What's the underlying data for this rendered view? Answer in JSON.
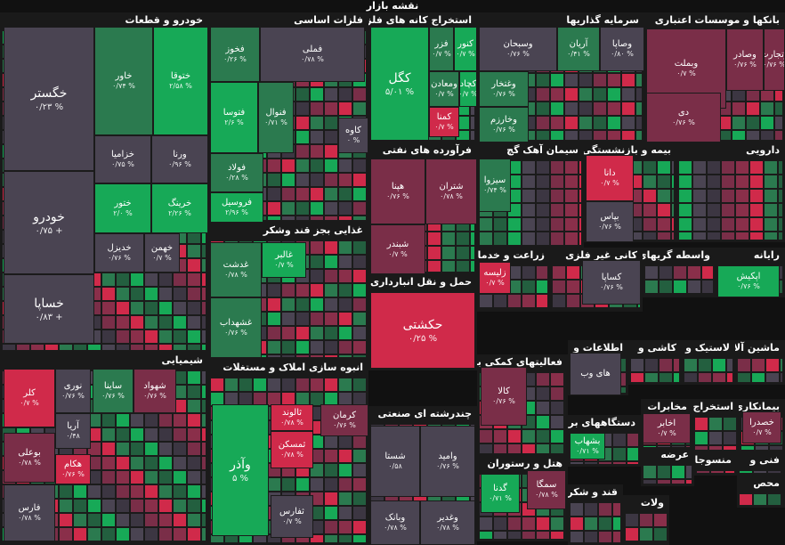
{
  "title": "نقشه بازار",
  "sectors": [
    {
      "id": "khodro",
      "label": "خودرو و قطعات",
      "cells": [
        {
          "n": "خگستر",
          "p": "۰/۲۳ %",
          "c": "#4a4452",
          "big": true
        },
        {
          "n": "خودرو",
          "p": "۰/۷۵ +",
          "c": "#4a4452",
          "big": true
        },
        {
          "n": "خساپا",
          "p": "۰/۸۳ +",
          "c": "#4a4452",
          "big": true
        },
        {
          "n": "خاور",
          "p": "۰/۷۴ %",
          "c": "#2b7a4f"
        },
        {
          "n": "ختوقا",
          "p": "۲/۵۸ %",
          "c": "#17a957"
        },
        {
          "n": "خزامیا",
          "p": "۰/۷۵ %",
          "c": "#4a4452"
        },
        {
          "n": "ورنا",
          "p": "۰/۹۶ %",
          "c": "#4a4452"
        },
        {
          "n": "ختور",
          "p": "۲/۰ %",
          "c": "#17a957"
        },
        {
          "n": "خرینگ",
          "p": "۲/۲۶ %",
          "c": "#17a957"
        },
        {
          "n": "خدیزل",
          "p": "۰/۷۶ %",
          "c": "#4a4452"
        },
        {
          "n": "خهمن",
          "p": "۰/۷ %",
          "c": "#4a4452"
        }
      ]
    },
    {
      "id": "felezat",
      "label": "فلزات اساسی",
      "cells": [
        {
          "n": "فخوز",
          "p": "۰/۲۶ %",
          "c": "#2b7a4f"
        },
        {
          "n": "فملی",
          "p": "۰/۷۸ %",
          "c": "#4a4452"
        },
        {
          "n": "فتوسا",
          "p": "۲/۶ %",
          "c": "#17a957"
        },
        {
          "n": "فنوال",
          "p": "۰/۷۱ %",
          "c": "#2b7a4f"
        },
        {
          "n": "فولاد",
          "p": "۰/۲۸ %",
          "c": "#2b7a4f"
        },
        {
          "n": "فروسیل",
          "p": "۲/۹۶ %",
          "c": "#17a957"
        },
        {
          "n": "کاوه",
          "p": "۰ %",
          "c": "#4a4452"
        }
      ]
    },
    {
      "id": "kani",
      "label": "استخراج کانه های فلزی",
      "cells": [
        {
          "n": "کگل",
          "p": "۵/۰۱ %",
          "c": "#17a957",
          "big": true
        },
        {
          "n": "فزر",
          "p": "۰/۷ %",
          "c": "#2b7a4f"
        },
        {
          "n": "کنور",
          "p": "۰/۷ %",
          "c": "#17a957"
        },
        {
          "n": "ومعادن",
          "p": "۰/۷ %",
          "c": "#2b7a4f"
        },
        {
          "n": "کچاد",
          "p": "۰/۷ %",
          "c": "#17a957"
        },
        {
          "n": "کمنا",
          "p": "۰/۷ %",
          "c": "#d02a4a"
        }
      ]
    },
    {
      "id": "sarmaye",
      "label": "سرمایه گذاریها",
      "cells": [
        {
          "n": "وسبحان",
          "p": "۰/۷۶ %",
          "c": "#4a4452"
        },
        {
          "n": "آریان",
          "p": "۰/۴۱ %",
          "c": "#2b7a4f"
        },
        {
          "n": "وصاپا",
          "p": "۰/۸۰ %",
          "c": "#4a4452"
        },
        {
          "n": "وغتخار",
          "p": "۰/۷۶ %",
          "c": "#2b7a4f"
        },
        {
          "n": "وخارزم",
          "p": "۰/۷۶ %",
          "c": "#2b7a4f"
        }
      ]
    },
    {
      "id": "bank",
      "label": "بانکها و موسسات اعتباری",
      "cells": [
        {
          "n": "وبملت",
          "p": "۰/۷ %",
          "c": "#7a2e48"
        },
        {
          "n": "وصادر",
          "p": "۰/۷۶ %",
          "c": "#7a2e48"
        },
        {
          "n": "وتجارت",
          "p": "۰/۷۶ %",
          "c": "#7a2e48"
        },
        {
          "n": "دی",
          "p": "۰/۷۶ %",
          "c": "#7a2e48"
        }
      ]
    },
    {
      "id": "nafti",
      "label": "فرآورده های نفتی",
      "cells": [
        {
          "n": "هپنا",
          "p": "۰/۷۶ %",
          "c": "#7a2e48"
        },
        {
          "n": "شتران",
          "p": "۰/۷۸ %",
          "c": "#7a2e48"
        },
        {
          "n": "شبندر",
          "p": "۰/۷ %",
          "c": "#7a2e48"
        }
      ]
    },
    {
      "id": "siman",
      "label": "سیمان آهک گچ",
      "cells": [
        {
          "n": "سیزوا",
          "p": "۰/۷۴ %",
          "c": "#2b7a4f"
        }
      ]
    },
    {
      "id": "bime",
      "label": "بیمه و بازنشستگی",
      "cells": [
        {
          "n": "دانا",
          "p": "۰/۷ %",
          "c": "#d02a4a"
        },
        {
          "n": "بپاس",
          "p": "۰/۷۶ %",
          "c": "#4a4452"
        }
      ]
    },
    {
      "id": "daroo",
      "label": "دارویی",
      "cells": []
    },
    {
      "id": "ghaza",
      "label": "غذایی بجز قند وشکر",
      "cells": [
        {
          "n": "غدشت",
          "p": "۰/۷۸ %",
          "c": "#2b7a4f"
        },
        {
          "n": "غالبر",
          "p": "۰/۷ %",
          "c": "#17a957"
        },
        {
          "n": "غشهداب",
          "p": "۰/۷۶ %",
          "c": "#2b7a4f"
        }
      ]
    },
    {
      "id": "haml",
      "label": "حمل و نقل انبارداری و",
      "cells": [
        {
          "n": "حکشتی",
          "p": "۰/۲۵ %",
          "c": "#d02a4a",
          "big": true
        }
      ]
    },
    {
      "id": "zeraat",
      "label": "زراعت و خدمات",
      "cells": [
        {
          "n": "زلیسه",
          "p": "۰/۷ %",
          "c": "#d02a4a"
        }
      ]
    },
    {
      "id": "kanighair",
      "label": "کانی غیر فلزی",
      "cells": [
        {
          "n": "کساپا",
          "p": "۰/۷۶ %",
          "c": "#4a4452"
        }
      ]
    },
    {
      "id": "vasete",
      "label": "واسطه گریهای",
      "cells": []
    },
    {
      "id": "rayane",
      "label": "رایانه",
      "cells": [
        {
          "n": "اپکیش",
          "p": "۰/۷۶ %",
          "c": "#17a957"
        }
      ]
    },
    {
      "id": "shimi",
      "label": "شیمیایی",
      "cells": [
        {
          "n": "کلر",
          "p": "۰/۷ %",
          "c": "#d02a4a"
        },
        {
          "n": "نوری",
          "p": "۰/۷۶ %",
          "c": "#4a4452"
        },
        {
          "n": "ساینا",
          "p": "۰/۷۶ %",
          "c": "#2b7a4f"
        },
        {
          "n": "شهواد",
          "p": "۰/۷۶ %",
          "c": "#7a2e48"
        },
        {
          "n": "آریا",
          "p": "۰/۴۸",
          "c": "#4a4452"
        },
        {
          "n": "بوعلی",
          "p": "۰/۷۸ %",
          "c": "#7a2e48"
        },
        {
          "n": "هکام",
          "p": "۰/۷۶ %",
          "c": "#d02a4a"
        },
        {
          "n": "فارس",
          "p": "۰/۷۸ %",
          "c": "#4a4452"
        }
      ]
    },
    {
      "id": "ghand",
      "label": "قند و شکر",
      "cells": []
    },
    {
      "id": "amlak",
      "label": "انبوه سازی املاک و مستغلات",
      "cells": [
        {
          "n": "وآذر",
          "p": "۵ %",
          "c": "#17a957",
          "big": true
        },
        {
          "n": "ثالوند",
          "p": "۰/۷۸ %",
          "c": "#d02a4a"
        },
        {
          "n": "ثمسکن",
          "p": "۰/۷۸ %",
          "c": "#d02a4a"
        },
        {
          "n": "کرمان",
          "p": "۰/۷۶ %",
          "c": "#7a2e48"
        },
        {
          "n": "ثفارس",
          "p": "۰/۷ %",
          "c": "#4a4452"
        }
      ]
    },
    {
      "id": "sanati",
      "label": "چندرشته ای صنعتی",
      "cells": [
        {
          "n": "شستا",
          "p": "۰/۵۸",
          "c": "#4a4452"
        },
        {
          "n": "وامید",
          "p": "۰/۷۶ %",
          "c": "#4a4452"
        },
        {
          "n": "وبانک",
          "p": "۰/۷۸ %",
          "c": "#4a4452"
        },
        {
          "n": "وغدیر",
          "p": "۰/۷۸ %",
          "c": "#4a4452"
        }
      ]
    },
    {
      "id": "komaki",
      "label": "فعالیتهای کمکی به",
      "cells": [
        {
          "n": "کالا",
          "p": "۰/۷۶ %",
          "c": "#7a2e48"
        }
      ]
    },
    {
      "id": "etela",
      "label": "اطلاعات و",
      "cells": [
        {
          "n": "های وب",
          "p": "",
          "c": "#4a4452"
        }
      ]
    },
    {
      "id": "kashi",
      "label": "کاشی و",
      "cells": []
    },
    {
      "id": "lastik",
      "label": "لاستیک و",
      "cells": []
    },
    {
      "id": "mashin",
      "label": "ماشین آلات",
      "cells": []
    },
    {
      "id": "mokhaberat",
      "label": "مخابرات",
      "cells": [
        {
          "n": "اخابر",
          "p": "۰/۷ %",
          "c": "#7a2e48"
        }
      ]
    },
    {
      "id": "estekhraj",
      "label": "استخراج",
      "cells": []
    },
    {
      "id": "bimanak",
      "label": "بیمانکاری",
      "cells": [
        {
          "n": "خصدرا",
          "p": "۰/۷ %",
          "c": "#7a2e48"
        }
      ]
    },
    {
      "id": "barghi",
      "label": "دستگاههای برقی",
      "cells": [
        {
          "n": "بشهاب",
          "p": "۰/۷۱ %",
          "c": "#17a957"
        }
      ]
    },
    {
      "id": "hotel",
      "label": "هتل و رستوران",
      "cells": [
        {
          "n": "گدنا",
          "p": "۰/۷۱ %",
          "c": "#17a957"
        },
        {
          "n": "سمگا",
          "p": "۰/۷۸ %",
          "c": "#7a2e48"
        }
      ]
    },
    {
      "id": "ghandshekar",
      "label": "قند و شکر",
      "cells": []
    },
    {
      "id": "arze",
      "label": "عرضه",
      "cells": []
    },
    {
      "id": "mansoojat",
      "label": "منسوجات",
      "cells": []
    },
    {
      "id": "fani",
      "label": "فنی و",
      "cells": []
    },
    {
      "id": "mohsen",
      "label": "محص",
      "cells": []
    },
    {
      "id": "vlat",
      "label": "ولات",
      "cells": []
    }
  ]
}
